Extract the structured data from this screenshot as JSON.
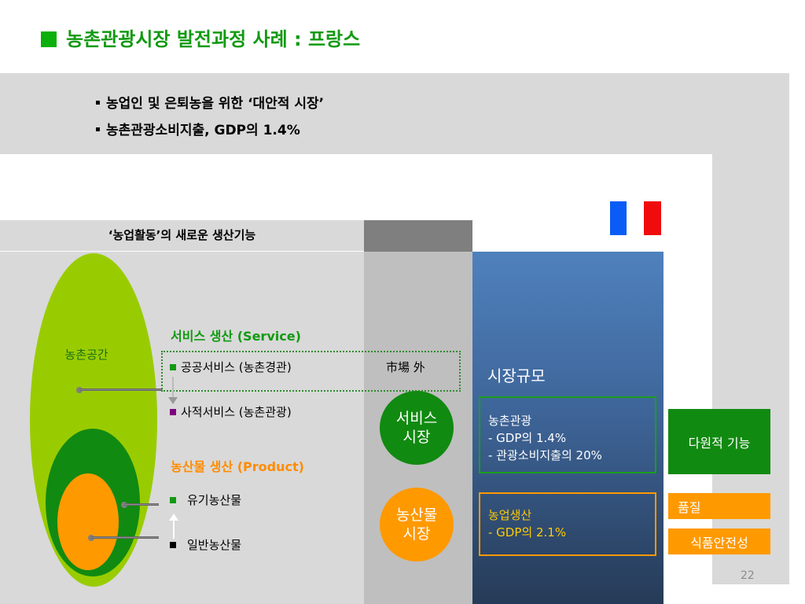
{
  "title": "농촌관광시장 발전과정 사례 : 프랑스",
  "bullets": [
    "농업인 및 은퇴농을 위한 ‘대안적 시장’",
    "농촌관광소비지출, GDP의 1.4%"
  ],
  "table_header": "‘농업활동’의 새로운 생산기능",
  "space_label": "농촌공간",
  "service": {
    "heading": "서비스 생산 (Service)",
    "public": "공공서비스 (농촌경관)",
    "private": "사적서비스 (농촌관광)",
    "outside_market": "市場 外"
  },
  "product": {
    "heading": "농산물 생산 (Product)",
    "organic": "유기농산물",
    "general": "일반농산물"
  },
  "circles": {
    "service_market": "서비스\n시장",
    "produce_market": "농산물\n시장"
  },
  "market_size_label": "시장규모",
  "tourism_box": "농촌관광\n- GDP의 1.4%\n- 관광소비지출의 20%",
  "farming_box": "농업생산\n- GDP의 2.1%",
  "tags": {
    "multifunction": "다원적 기능",
    "quality": "품질",
    "food_safety": "식품안전성"
  },
  "page_number": "22",
  "colors": {
    "title_green": "#129a12",
    "light_green": "#99cc00",
    "dark_green": "#118a11",
    "orange": "#ff9900",
    "purple": "#7f007f",
    "flag_blue": "#0a5cf7",
    "flag_red": "#f00c0c"
  }
}
